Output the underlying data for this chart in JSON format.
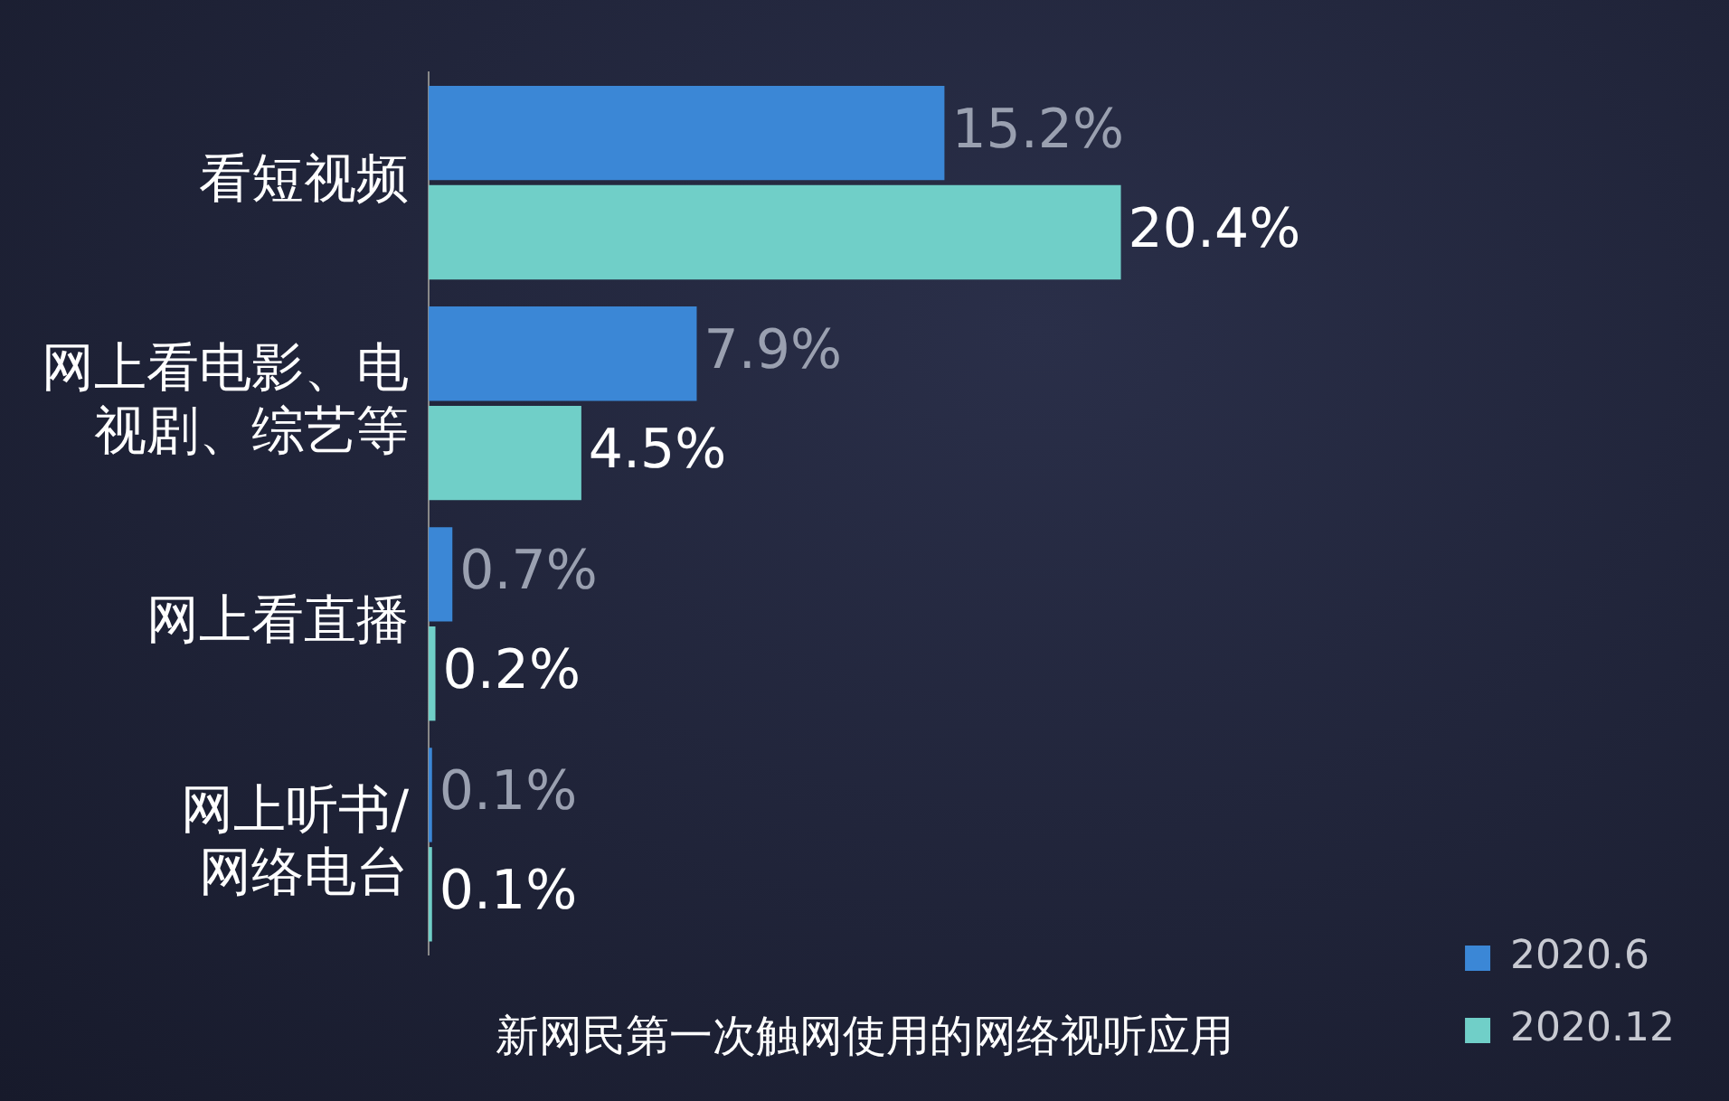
{
  "chart_data": {
    "type": "bar",
    "orientation": "horizontal",
    "title": "新网民第一次触网使用的网络视听应用",
    "categories": [
      "看短视频",
      "网上看电影、电视剧、综艺等",
      "网上看直播",
      "网上听书/网络电台"
    ],
    "series": [
      {
        "name": "2020.6",
        "color": "#3b87d6",
        "values": [
          15.2,
          7.9,
          0.7,
          0.1
        ],
        "value_labels": [
          "15.2%",
          "7.9%",
          "0.7%",
          "0.1%"
        ]
      },
      {
        "name": "2020.12",
        "color": "#70cfc8",
        "values": [
          20.4,
          4.5,
          0.2,
          0.1
        ],
        "value_labels": [
          "20.4%",
          "4.5%",
          "0.2%",
          "0.1%"
        ]
      }
    ],
    "legend": "bottom right",
    "grid": false
  }
}
